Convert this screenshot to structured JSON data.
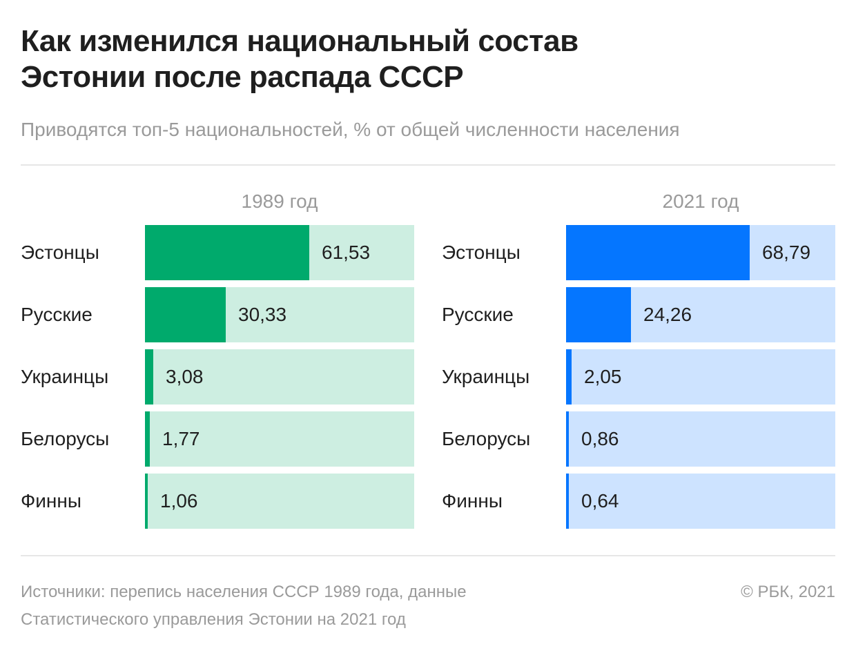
{
  "title": "Как изменился национальный состав\nЭстонии после распада СССР",
  "subtitle": "Приводятся топ-5 национальностей, % от общей численности населения",
  "source": "Источники: перепись населения СССР 1989 года, данные\nСтатистического управления Эстонии на 2021 год",
  "copyright": "© РБК, 2021",
  "chart_data": [
    {
      "type": "bar",
      "title": "1989 год",
      "categories": [
        "Эстонцы",
        "Русские",
        "Украинцы",
        "Белорусы",
        "Финны"
      ],
      "values": [
        61.53,
        30.33,
        3.08,
        1.77,
        1.06
      ],
      "value_labels": [
        "61,53",
        "30,33",
        "3,08",
        "1,77",
        "1,06"
      ],
      "xlim": [
        0,
        100
      ],
      "bar_color": "#00aa6c",
      "track_color": "#cdeee1"
    },
    {
      "type": "bar",
      "title": "2021 год",
      "categories": [
        "Эстонцы",
        "Русские",
        "Украинцы",
        "Белорусы",
        "Финны"
      ],
      "values": [
        68.79,
        24.26,
        2.05,
        0.86,
        0.64
      ],
      "value_labels": [
        "68,79",
        "24,26",
        "2,05",
        "0,86",
        "0,64"
      ],
      "xlim": [
        0,
        100
      ],
      "bar_color": "#0576ff",
      "track_color": "#cde3ff"
    }
  ]
}
